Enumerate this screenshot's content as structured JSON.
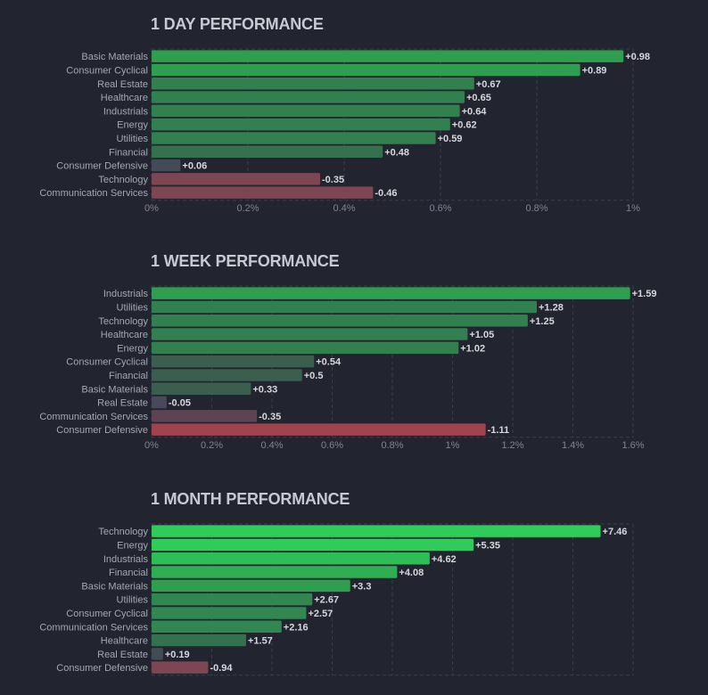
{
  "chart_data": [
    {
      "type": "bar",
      "orientation": "horizontal",
      "title": "1 DAY PERFORMANCE",
      "categories": [
        "Basic Materials",
        "Consumer Cyclical",
        "Real Estate",
        "Healthcare",
        "Industrials",
        "Energy",
        "Utilities",
        "Financial",
        "Consumer Defensive",
        "Technology",
        "Communication Services"
      ],
      "values": [
        0.98,
        0.89,
        0.67,
        0.65,
        0.64,
        0.62,
        0.59,
        0.48,
        0.06,
        -0.35,
        -0.46
      ],
      "value_labels": [
        "+0.98",
        "+0.89",
        "+0.67",
        "+0.65",
        "+0.64",
        "+0.62",
        "+0.59",
        "+0.48",
        "+0.06",
        "-0.35",
        "-0.46"
      ],
      "colors": [
        "#2f9e4f",
        "#2f9e4f",
        "#327f4f",
        "#327f4f",
        "#327f4f",
        "#327f4f",
        "#327f4f",
        "#35714e",
        "#414c57",
        "#7d4653",
        "#7d4653"
      ],
      "xlim": [
        0,
        1
      ],
      "xticks": [
        0,
        0.2,
        0.4,
        0.6,
        0.8,
        1
      ],
      "xtick_labels": [
        "0%",
        "0.2%",
        "0.4%",
        "0.6%",
        "0.8%",
        "1%"
      ],
      "xlabel": "",
      "ylabel": "",
      "grid": true,
      "bar_length": "absolute value"
    },
    {
      "type": "bar",
      "orientation": "horizontal",
      "title": "1 WEEK PERFORMANCE",
      "categories": [
        "Industrials",
        "Utilities",
        "Technology",
        "Healthcare",
        "Energy",
        "Consumer Cyclical",
        "Financial",
        "Basic Materials",
        "Real Estate",
        "Communication Services",
        "Consumer Defensive"
      ],
      "values": [
        1.59,
        1.28,
        1.25,
        1.05,
        1.02,
        0.54,
        0.5,
        0.33,
        -0.05,
        -0.35,
        -1.11
      ],
      "value_labels": [
        "+1.59",
        "+1.28",
        "+1.25",
        "+1.05",
        "+1.02",
        "+0.54",
        "+0.5",
        "+0.33",
        "-0.05",
        "-0.35",
        "-1.11"
      ],
      "colors": [
        "#2f9e4f",
        "#327f4f",
        "#327f4f",
        "#327f4f",
        "#327f4f",
        "#3a5f4e",
        "#3a5f4e",
        "#3a5f4e",
        "#464a5a",
        "#5e4452",
        "#a0434c"
      ],
      "xlim": [
        0,
        1.6
      ],
      "xticks": [
        0,
        0.2,
        0.4,
        0.6,
        0.8,
        1,
        1.2,
        1.4,
        1.6
      ],
      "xtick_labels": [
        "0%",
        "0.2%",
        "0.4%",
        "0.6%",
        "0.8%",
        "1%",
        "1.2%",
        "1.4%",
        "1.6%"
      ],
      "xlabel": "",
      "ylabel": "",
      "grid": true,
      "bar_length": "absolute value"
    },
    {
      "type": "bar",
      "orientation": "horizontal",
      "title": "1 MONTH PERFORMANCE",
      "categories": [
        "Technology",
        "Energy",
        "Industrials",
        "Financial",
        "Basic Materials",
        "Utilities",
        "Consumer Cyclical",
        "Communication Services",
        "Healthcare",
        "Real Estate",
        "Consumer Defensive"
      ],
      "values": [
        7.46,
        5.35,
        4.62,
        4.08,
        3.3,
        2.67,
        2.57,
        2.16,
        1.57,
        0.19,
        -0.94
      ],
      "value_labels": [
        "+7.46",
        "+5.35",
        "+4.62",
        "+4.08",
        "+3.3",
        "+2.67",
        "+2.57",
        "+2.16",
        "+1.57",
        "+0.19",
        "-0.94"
      ],
      "colors": [
        "#30cc5a",
        "#30cc5a",
        "#2fbd57",
        "#2fae53",
        "#2f9e4f",
        "#31874f",
        "#31874f",
        "#31874f",
        "#34714e",
        "#414c57",
        "#7d4653"
      ],
      "xlim": [
        0,
        8
      ],
      "xticks": [
        0,
        1,
        2,
        3,
        4,
        5,
        6,
        7,
        8
      ],
      "xtick_labels": [],
      "xlabel": "",
      "ylabel": "",
      "grid": true,
      "bar_length": "absolute value"
    }
  ]
}
